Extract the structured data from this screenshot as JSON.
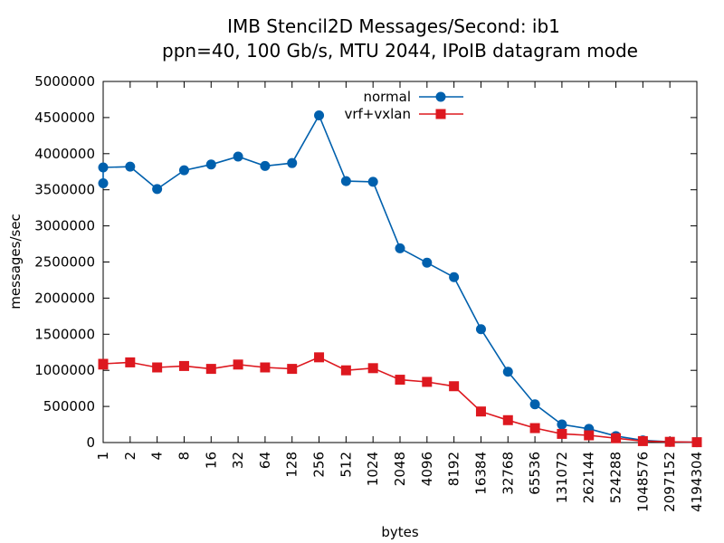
{
  "chart_data": {
    "type": "line",
    "title_line1": "IMB Stencil2D Messages/Second: ib1",
    "title_line2": "ppn=40, 100 Gb/s, MTU 2044, IPoIB datagram mode",
    "xlabel": "bytes",
    "ylabel": "messages/sec",
    "categories": [
      "1",
      "2",
      "4",
      "8",
      "16",
      "32",
      "64",
      "128",
      "256",
      "512",
      "1024",
      "2048",
      "4096",
      "8192",
      "16384",
      "32768",
      "65536",
      "131072",
      "262144",
      "524288",
      "1048576",
      "2097152",
      "4194304"
    ],
    "y_ticks": [
      "0",
      "500000",
      "1000000",
      "1500000",
      "2000000",
      "2500000",
      "3000000",
      "3500000",
      "4000000",
      "4500000",
      "5000000"
    ],
    "ylim": [
      0,
      5000000
    ],
    "legend_position": "top-center",
    "series": [
      {
        "name": "normal",
        "color": "#0060ad",
        "marker": "circle",
        "points": [
          [
            0,
            3590000
          ],
          [
            0,
            3810000
          ],
          [
            1,
            3820000
          ],
          [
            2,
            3510000
          ],
          [
            3,
            3770000
          ],
          [
            4,
            3850000
          ],
          [
            5,
            3960000
          ],
          [
            6,
            3830000
          ],
          [
            7,
            3870000
          ],
          [
            8,
            4530000
          ],
          [
            9,
            3620000
          ],
          [
            10,
            3610000
          ],
          [
            11,
            2690000
          ],
          [
            12,
            2490000
          ],
          [
            13,
            2290000
          ],
          [
            14,
            1570000
          ],
          [
            15,
            980000
          ],
          [
            16,
            530000
          ],
          [
            17,
            250000
          ],
          [
            18,
            190000
          ],
          [
            19,
            90000
          ],
          [
            20,
            30000
          ],
          [
            21,
            10000
          ],
          [
            22,
            5000
          ]
        ]
      },
      {
        "name": "vrf+vxlan",
        "color": "#dd181f",
        "marker": "square",
        "points": [
          [
            0,
            1080000
          ],
          [
            0,
            1090000
          ],
          [
            1,
            1110000
          ],
          [
            2,
            1040000
          ],
          [
            3,
            1060000
          ],
          [
            4,
            1020000
          ],
          [
            5,
            1080000
          ],
          [
            6,
            1040000
          ],
          [
            7,
            1020000
          ],
          [
            8,
            1180000
          ],
          [
            9,
            1000000
          ],
          [
            10,
            1030000
          ],
          [
            11,
            870000
          ],
          [
            12,
            840000
          ],
          [
            13,
            780000
          ],
          [
            14,
            430000
          ],
          [
            15,
            310000
          ],
          [
            16,
            200000
          ],
          [
            17,
            120000
          ],
          [
            18,
            100000
          ],
          [
            19,
            60000
          ],
          [
            20,
            20000
          ],
          [
            21,
            10000
          ],
          [
            22,
            5000
          ]
        ]
      }
    ]
  }
}
